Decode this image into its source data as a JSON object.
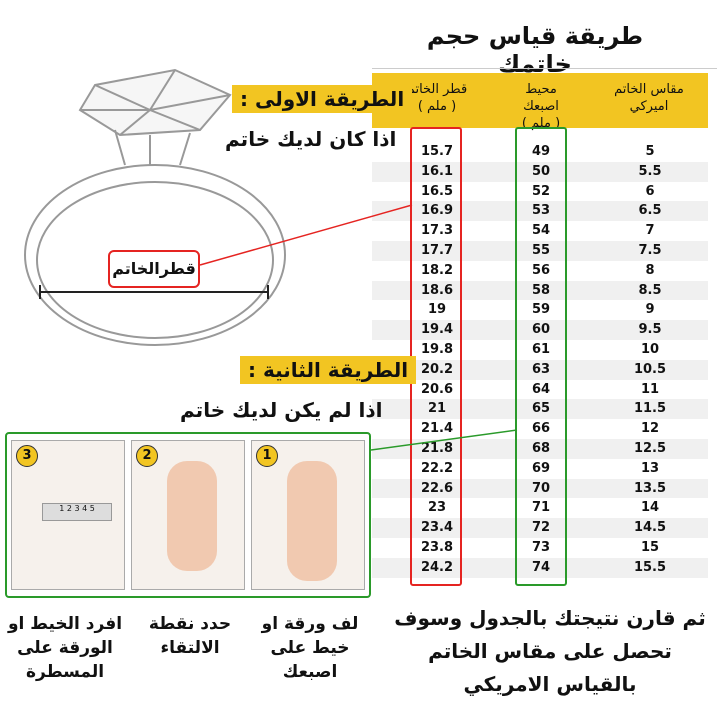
{
  "title": "طريقة قياس حجم خاتمك",
  "table": {
    "headers": {
      "diameter": "قطر الخاتم",
      "diameter_unit": "( ملم )",
      "circumference": "محيط اصبعك",
      "circumference_unit": "( ملم )",
      "us_size": "مقاس الخاتم",
      "us_size_2": "اميركي"
    },
    "rows": [
      [
        "15.7",
        "49",
        "5"
      ],
      [
        "16.1",
        "50",
        "5.5"
      ],
      [
        "16.5",
        "52",
        "6"
      ],
      [
        "16.9",
        "53",
        "6.5"
      ],
      [
        "17.3",
        "54",
        "7"
      ],
      [
        "17.7",
        "55",
        "7.5"
      ],
      [
        "18.2",
        "56",
        "8"
      ],
      [
        "18.6",
        "58",
        "8.5"
      ],
      [
        "19",
        "59",
        "9"
      ],
      [
        "19.4",
        "60",
        "9.5"
      ],
      [
        "19.8",
        "61",
        "10"
      ],
      [
        "20.2",
        "63",
        "10.5"
      ],
      [
        "20.6",
        "64",
        "11"
      ],
      [
        "21",
        "65",
        "11.5"
      ],
      [
        "21.4",
        "66",
        "12"
      ],
      [
        "21.8",
        "68",
        "12.5"
      ],
      [
        "22.2",
        "69",
        "13"
      ],
      [
        "22.6",
        "70",
        "13.5"
      ],
      [
        "23",
        "71",
        "14"
      ],
      [
        "23.4",
        "72",
        "14.5"
      ],
      [
        "23.8",
        "73",
        "15"
      ],
      [
        "24.2",
        "74",
        "15.5"
      ]
    ]
  },
  "method1": {
    "label": "الطريقة الاولى :",
    "text": "اذا كان لديك خاتم",
    "ring_label": "قطرالخاتم"
  },
  "method2": {
    "label": "الطريقة الثانية :",
    "text": "اذا لم يكن لديك خاتم"
  },
  "steps": [
    {
      "num": "1",
      "caption": "لف ورقة او خيط على اصبعك"
    },
    {
      "num": "2",
      "caption": "حدد نقطة الالتقاء"
    },
    {
      "num": "3",
      "caption": "افرد الخيط او الورقة على المسطرة"
    }
  ],
  "ruler_marks": "1 2 3 4 5",
  "conclusion": "ثم قارن نتيجتك بالجدول وسوف تحصل على مقاس الخاتم بالقياس الامريكي",
  "colors": {
    "yellow": "#f2c522",
    "red": "#e52421",
    "green": "#2a9a2a"
  }
}
